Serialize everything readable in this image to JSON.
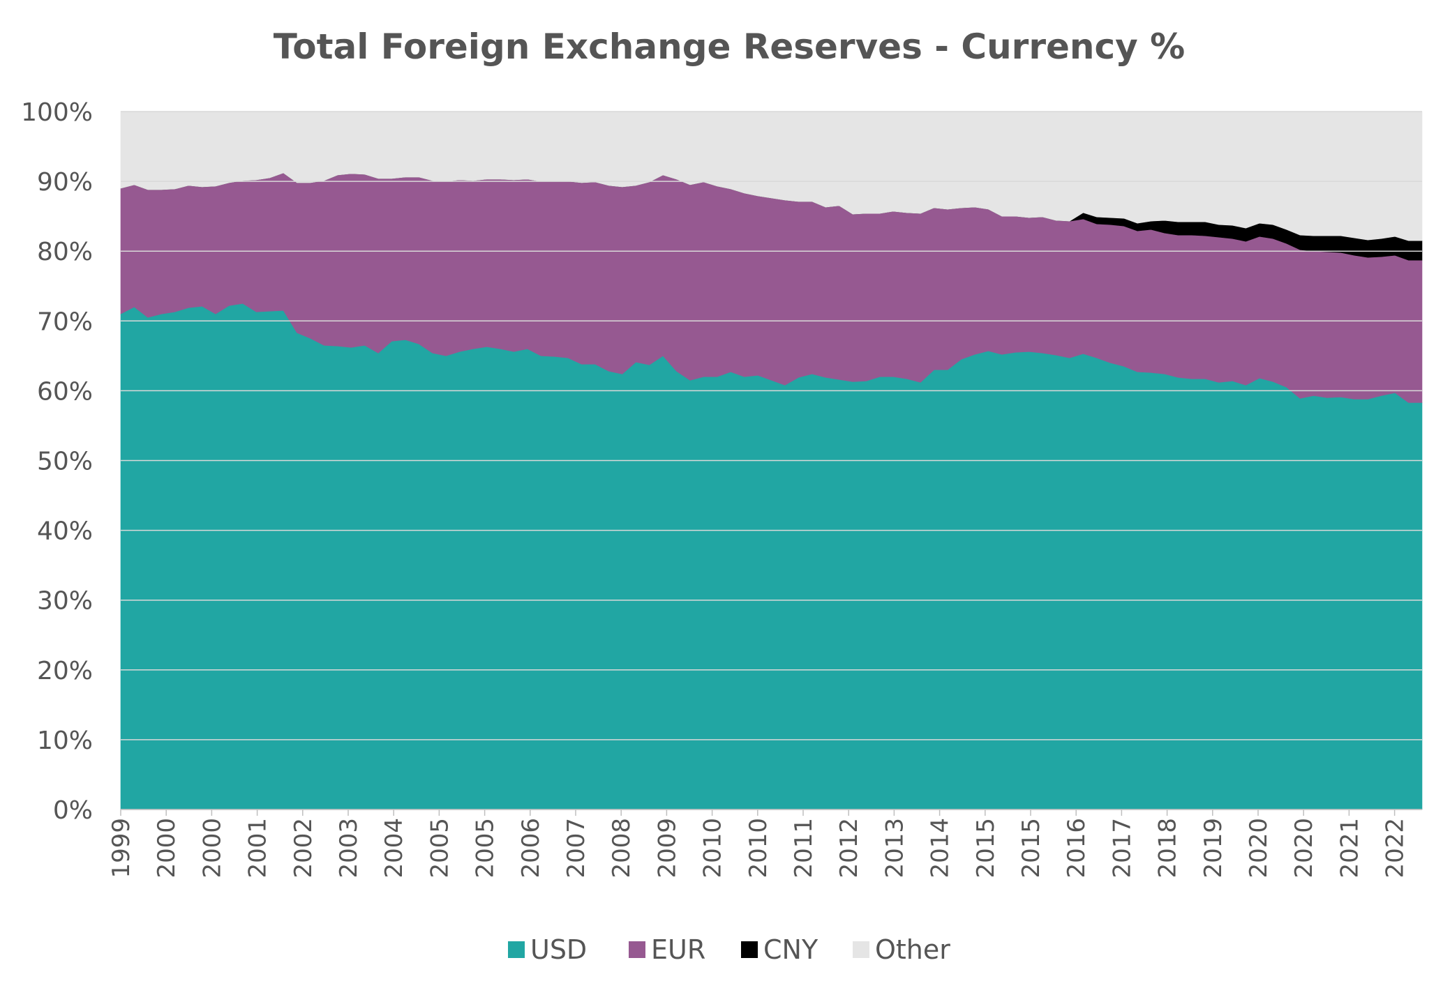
{
  "chart_data": {
    "type": "area",
    "stacked": true,
    "title": "Total Foreign Exchange Reserves - Currency %",
    "xlabel": "",
    "ylabel": "",
    "ylim": [
      0,
      100
    ],
    "ytick_labels": [
      "0%",
      "10%",
      "20%",
      "30%",
      "40%",
      "50%",
      "60%",
      "70%",
      "80%",
      "90%",
      "100%"
    ],
    "x_tick_labels": [
      "1999",
      "2000",
      "2000",
      "2001",
      "2002",
      "2003",
      "2004",
      "2005",
      "2005",
      "2006",
      "2007",
      "2008",
      "2009",
      "2010",
      "2010",
      "2011",
      "2012",
      "2013",
      "2014",
      "2015",
      "2015",
      "2016",
      "2017",
      "2018",
      "2019",
      "2020",
      "2020",
      "2021",
      "2022"
    ],
    "legend_position": "bottom",
    "grid": "horizontal",
    "colors": {
      "USD": "#21a6a3",
      "EUR": "#965991",
      "CNY": "#000000",
      "Other": "#e5e5e5"
    },
    "series": [
      {
        "name": "USD",
        "values": [
          71.0,
          72.0,
          70.5,
          71.0,
          71.3,
          71.9,
          72.1,
          71.0,
          72.2,
          72.5,
          71.3,
          71.4,
          71.5,
          68.3,
          67.5,
          66.5,
          66.4,
          66.2,
          66.5,
          65.4,
          67.1,
          67.3,
          66.7,
          65.4,
          65.0,
          65.6,
          66.0,
          66.3,
          66.0,
          65.6,
          66.0,
          65.0,
          64.9,
          64.7,
          63.8,
          63.8,
          62.8,
          62.4,
          64.1,
          63.7,
          65.0,
          62.8,
          61.5,
          62.0,
          62.0,
          62.7,
          62.0,
          62.2,
          61.5,
          60.8,
          61.9,
          62.4,
          61.9,
          61.6,
          61.3,
          61.4,
          62.0,
          62.0,
          61.7,
          61.2,
          63.0,
          63.0,
          64.5,
          65.2,
          65.7,
          65.2,
          65.5,
          65.6,
          65.4,
          65.1,
          64.7,
          65.3,
          64.7,
          64.0,
          63.5,
          62.7,
          62.6,
          62.4,
          61.9,
          61.7,
          61.7,
          61.2,
          61.4,
          60.8,
          61.8,
          61.3,
          60.5,
          58.9,
          59.3,
          59.0,
          59.1,
          58.8,
          58.8,
          59.3,
          59.7,
          58.3,
          58.3
        ]
      },
      {
        "name": "EUR",
        "values": [
          18.0,
          17.5,
          18.3,
          17.8,
          17.6,
          17.5,
          17.1,
          18.3,
          17.6,
          17.6,
          18.9,
          19.1,
          19.7,
          21.5,
          22.3,
          23.6,
          24.5,
          24.9,
          24.5,
          25.0,
          23.3,
          23.3,
          23.9,
          24.7,
          25.0,
          24.6,
          24.1,
          24.0,
          24.3,
          24.6,
          24.3,
          25.0,
          25.1,
          25.3,
          26.0,
          26.1,
          26.6,
          26.8,
          25.3,
          26.2,
          25.9,
          27.5,
          28.0,
          27.9,
          27.3,
          26.2,
          26.3,
          25.7,
          26.1,
          26.5,
          25.2,
          24.7,
          24.4,
          24.9,
          24.0,
          24.0,
          23.4,
          23.7,
          23.8,
          24.2,
          23.2,
          23.0,
          21.7,
          21.1,
          20.3,
          19.8,
          19.5,
          19.2,
          19.5,
          19.3,
          19.6,
          19.3,
          19.2,
          19.8,
          20.1,
          20.2,
          20.5,
          20.2,
          20.4,
          20.6,
          20.5,
          20.8,
          20.4,
          20.6,
          20.3,
          20.5,
          20.6,
          21.3,
          20.7,
          20.9,
          20.7,
          20.6,
          20.3,
          19.9,
          19.7,
          20.4,
          20.4
        ]
      },
      {
        "name": "CNY",
        "values": [
          0,
          0,
          0,
          0,
          0,
          0,
          0,
          0,
          0,
          0,
          0,
          0,
          0,
          0,
          0,
          0,
          0,
          0,
          0,
          0,
          0,
          0,
          0,
          0,
          0,
          0,
          0,
          0,
          0,
          0,
          0,
          0,
          0,
          0,
          0,
          0,
          0,
          0,
          0,
          0,
          0,
          0,
          0,
          0,
          0,
          0,
          0,
          0,
          0,
          0,
          0,
          0,
          0,
          0,
          0,
          0,
          0,
          0,
          0,
          0,
          0,
          0,
          0,
          0,
          0,
          0,
          0,
          0,
          0,
          0,
          0,
          0.9,
          1.0,
          1.0,
          1.1,
          1.1,
          1.2,
          1.8,
          1.9,
          1.9,
          2.0,
          1.8,
          1.9,
          1.9,
          1.9,
          2.0,
          2.0,
          2.1,
          2.2,
          2.3,
          2.4,
          2.5,
          2.5,
          2.6,
          2.7,
          2.8,
          2.8
        ]
      },
      {
        "name": "Other",
        "values": [
          11.0,
          10.5,
          11.2,
          11.2,
          11.1,
          10.6,
          10.8,
          10.7,
          10.2,
          9.9,
          9.8,
          9.5,
          8.8,
          10.2,
          10.2,
          9.9,
          9.1,
          8.9,
          9.0,
          9.6,
          9.6,
          9.4,
          9.4,
          9.9,
          10.0,
          9.8,
          9.9,
          9.7,
          9.7,
          9.8,
          9.7,
          10.0,
          10.0,
          10.0,
          10.2,
          10.1,
          10.6,
          10.8,
          10.6,
          10.1,
          9.1,
          9.7,
          10.5,
          10.1,
          10.7,
          11.1,
          11.7,
          12.1,
          12.4,
          12.7,
          12.9,
          12.9,
          13.7,
          13.5,
          14.7,
          14.6,
          14.6,
          14.3,
          14.5,
          14.6,
          13.8,
          14.0,
          13.8,
          13.7,
          14.0,
          15.0,
          15.0,
          15.2,
          15.1,
          15.6,
          15.7,
          14.5,
          15.1,
          15.2,
          15.3,
          16.0,
          15.7,
          15.6,
          15.8,
          15.8,
          15.8,
          16.2,
          16.3,
          16.7,
          16.0,
          16.2,
          16.9,
          17.7,
          17.8,
          17.8,
          17.8,
          18.1,
          18.4,
          18.2,
          17.9,
          18.5,
          18.5
        ]
      }
    ]
  }
}
